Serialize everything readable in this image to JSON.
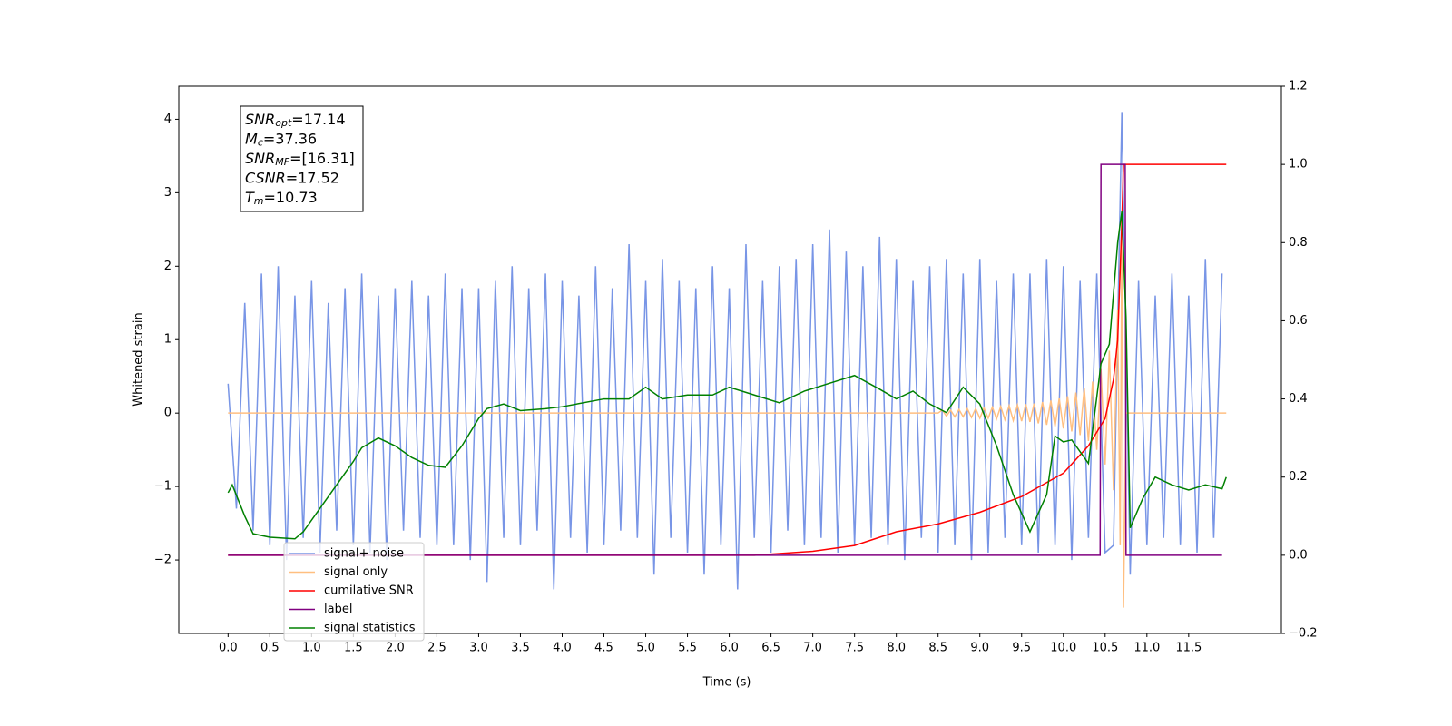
{
  "chart_data": {
    "type": "line",
    "xlabel": "Time (s)",
    "ylabel": "Whitened strain",
    "xlim": [
      -0.59,
      12.61
    ],
    "ylim": [
      -3.0,
      4.45
    ],
    "y2lim": [
      -0.2,
      1.2
    ],
    "xticks": [
      {
        "value": 0,
        "label": "0.0"
      },
      0.5,
      {
        "value": 1,
        "label": "1.0"
      },
      1.5,
      {
        "value": 2,
        "label": "2.0"
      },
      2.5,
      {
        "value": 3,
        "label": "3.0"
      },
      3.5,
      {
        "value": 4,
        "label": "4.0"
      },
      4.5,
      {
        "value": 5,
        "label": "5.0"
      },
      5.5,
      {
        "value": 6,
        "label": "6.0"
      },
      6.5,
      {
        "value": 7,
        "label": "7.0"
      },
      7.5,
      {
        "value": 8,
        "label": "8.0"
      },
      8.5,
      {
        "value": 9,
        "label": "9.0"
      },
      9.5,
      {
        "value": 10,
        "label": "10.0"
      },
      10.5,
      {
        "value": 11,
        "label": "11.0"
      },
      11.5
    ],
    "yticks": [
      {
        "value": -2,
        "label": "−2"
      },
      {
        "value": -1,
        "label": "−1"
      },
      0,
      1,
      2,
      3,
      4
    ],
    "y2ticks": [
      {
        "value": -0.2,
        "label": "−0.2"
      },
      {
        "value": 0,
        "label": "0.0"
      },
      0.2,
      0.4,
      0.6,
      0.8,
      {
        "value": 1,
        "label": "1.0"
      },
      1.2
    ],
    "stats_box": [
      {
        "symbol": "SNR",
        "subscript": "opt",
        "text": "=17.14"
      },
      {
        "symbol": "M",
        "subscript": "c",
        "text": "=37.36"
      },
      {
        "symbol": "SNR",
        "subscript": "MF",
        "text": "=[16.31]"
      },
      {
        "symbol": "CSNR",
        "subscript": null,
        "text": "=17.52"
      },
      {
        "symbol": "T",
        "subscript": "m",
        "text": "=10.73"
      }
    ],
    "series": [
      {
        "name": "signal+ noise",
        "color": "#7895e6",
        "axis": "y",
        "x": [
          0.0,
          0.1,
          0.2,
          0.3,
          0.4,
          0.5,
          0.6,
          0.7,
          0.8,
          0.9,
          1.0,
          1.1,
          1.2,
          1.3,
          1.4,
          1.5,
          1.6,
          1.7,
          1.8,
          1.9,
          2.0,
          2.1,
          2.2,
          2.3,
          2.4,
          2.5,
          2.6,
          2.7,
          2.8,
          2.9,
          3.0,
          3.1,
          3.2,
          3.3,
          3.4,
          3.5,
          3.6,
          3.7,
          3.8,
          3.9,
          4.0,
          4.1,
          4.2,
          4.3,
          4.4,
          4.5,
          4.6,
          4.7,
          4.8,
          4.9,
          5.0,
          5.1,
          5.2,
          5.3,
          5.4,
          5.5,
          5.6,
          5.7,
          5.8,
          5.9,
          6.0,
          6.1,
          6.2,
          6.3,
          6.4,
          6.5,
          6.6,
          6.7,
          6.8,
          6.9,
          7.0,
          7.1,
          7.2,
          7.3,
          7.4,
          7.5,
          7.6,
          7.7,
          7.8,
          7.9,
          8.0,
          8.1,
          8.2,
          8.3,
          8.4,
          8.5,
          8.6,
          8.7,
          8.8,
          8.9,
          9.0,
          9.1,
          9.2,
          9.3,
          9.4,
          9.5,
          9.6,
          9.7,
          9.8,
          9.9,
          10.0,
          10.1,
          10.2,
          10.3,
          10.4,
          10.5,
          10.6,
          10.7,
          10.8,
          10.9,
          11.0,
          11.1,
          11.2,
          11.3,
          11.4,
          11.5,
          11.6,
          11.7,
          11.8,
          11.9
        ],
        "values": [
          0.4,
          -1.3,
          1.5,
          -1.6,
          1.9,
          -1.8,
          2.0,
          -2.0,
          1.6,
          -1.7,
          1.8,
          -1.9,
          1.5,
          -1.6,
          1.7,
          -1.8,
          1.9,
          -1.9,
          1.6,
          -2.0,
          1.7,
          -1.6,
          1.8,
          -1.7,
          1.6,
          -1.8,
          1.9,
          -1.8,
          1.7,
          -2.0,
          1.7,
          -2.3,
          1.8,
          -1.7,
          2.0,
          -1.8,
          1.7,
          -1.6,
          1.9,
          -2.4,
          1.8,
          -1.7,
          1.6,
          -1.9,
          2.0,
          -1.8,
          1.7,
          -1.6,
          2.3,
          -1.7,
          1.8,
          -2.2,
          2.1,
          -1.7,
          1.8,
          -1.9,
          1.7,
          -2.2,
          2.0,
          -1.8,
          1.7,
          -2.4,
          2.3,
          -1.7,
          1.8,
          -1.9,
          2.0,
          -1.6,
          2.1,
          -1.8,
          2.3,
          -1.7,
          2.5,
          -1.9,
          2.2,
          -1.8,
          2.0,
          -1.7,
          2.4,
          -1.8,
          2.1,
          -2.0,
          1.8,
          -1.7,
          2.0,
          -1.9,
          2.1,
          -1.8,
          1.9,
          -2.0,
          2.1,
          -1.9,
          1.8,
          -1.7,
          1.9,
          -1.8,
          1.9,
          -1.9,
          2.1,
          -1.8,
          2.0,
          -2.0,
          1.8,
          -1.7,
          1.9,
          -1.9,
          -1.8,
          4.1,
          -2.2,
          1.8,
          -1.8,
          1.6,
          -1.7,
          1.9,
          -1.8,
          1.6,
          -1.9,
          2.1,
          -1.7,
          1.9
        ]
      },
      {
        "name": "signal only",
        "color": "#ffbf80",
        "axis": "y",
        "x": [
          0.0,
          8.5,
          8.55,
          8.6,
          8.65,
          8.7,
          8.75,
          8.8,
          8.85,
          8.9,
          8.95,
          9.0,
          9.05,
          9.1,
          9.15,
          9.2,
          9.25,
          9.3,
          9.35,
          9.4,
          9.45,
          9.5,
          9.55,
          9.6,
          9.65,
          9.7,
          9.75,
          9.8,
          9.85,
          9.9,
          9.95,
          10.0,
          10.05,
          10.1,
          10.15,
          10.2,
          10.25,
          10.3,
          10.35,
          10.4,
          10.45,
          10.5,
          10.55,
          10.6,
          10.65,
          10.68,
          10.7,
          10.72,
          10.75,
          11.95
        ],
        "values": [
          0,
          0,
          0.04,
          -0.04,
          0.04,
          -0.05,
          0.05,
          -0.05,
          0.06,
          -0.06,
          0.06,
          -0.07,
          0.07,
          -0.07,
          0.08,
          -0.08,
          0.09,
          -0.09,
          0.1,
          -0.1,
          0.11,
          -0.11,
          0.12,
          -0.12,
          0.13,
          -0.14,
          0.15,
          -0.16,
          0.17,
          -0.18,
          0.2,
          -0.21,
          0.23,
          -0.25,
          0.28,
          -0.3,
          0.34,
          -0.38,
          0.43,
          -0.5,
          0.6,
          -0.7,
          0.85,
          -1.05,
          1.4,
          -1.8,
          2.6,
          -2.65,
          0,
          0
        ]
      },
      {
        "name": "cumilative SNR",
        "color": "#ff0000",
        "axis": "y2",
        "x": [
          0.0,
          6.3,
          7.0,
          7.5,
          8.0,
          8.5,
          9.0,
          9.5,
          10.0,
          10.3,
          10.5,
          10.6,
          10.65,
          10.7,
          10.72,
          11.95
        ],
        "values": [
          0,
          0,
          0.01,
          0.025,
          0.06,
          0.08,
          0.11,
          0.15,
          0.21,
          0.28,
          0.35,
          0.45,
          0.55,
          0.85,
          1.0,
          1.0
        ]
      },
      {
        "name": "label",
        "color": "#800080",
        "axis": "y2",
        "x": [
          0.0,
          10.44,
          10.45,
          10.74,
          10.75,
          11.9
        ],
        "values": [
          0,
          0,
          1,
          1,
          0,
          0
        ]
      },
      {
        "name": "signal statistics",
        "color": "#008000",
        "axis": "y2",
        "x": [
          0.0,
          0.05,
          0.2,
          0.3,
          0.5,
          0.8,
          0.9,
          1.1,
          1.3,
          1.5,
          1.6,
          1.8,
          2.0,
          2.2,
          2.4,
          2.6,
          2.8,
          3.0,
          3.1,
          3.3,
          3.5,
          3.8,
          4.0,
          4.5,
          4.8,
          5.0,
          5.2,
          5.5,
          5.8,
          6.0,
          6.3,
          6.6,
          6.9,
          7.2,
          7.5,
          7.8,
          8.0,
          8.2,
          8.4,
          8.6,
          8.8,
          9.0,
          9.2,
          9.4,
          9.6,
          9.8,
          9.9,
          10.0,
          10.1,
          10.3,
          10.45,
          10.55,
          10.65,
          10.7,
          10.75,
          10.8,
          10.95,
          11.1,
          11.3,
          11.5,
          11.7,
          11.9,
          11.95
        ],
        "values": [
          0.16,
          0.18,
          0.1,
          0.055,
          0.046,
          0.042,
          0.06,
          0.12,
          0.18,
          0.24,
          0.275,
          0.3,
          0.28,
          0.25,
          0.23,
          0.225,
          0.28,
          0.35,
          0.375,
          0.387,
          0.37,
          0.375,
          0.38,
          0.4,
          0.4,
          0.43,
          0.4,
          0.41,
          0.41,
          0.43,
          0.41,
          0.39,
          0.42,
          0.44,
          0.46,
          0.425,
          0.4,
          0.42,
          0.387,
          0.365,
          0.43,
          0.387,
          0.28,
          0.155,
          0.06,
          0.155,
          0.305,
          0.29,
          0.295,
          0.235,
          0.49,
          0.54,
          0.8,
          0.88,
          0.61,
          0.07,
          0.145,
          0.2,
          0.18,
          0.167,
          0.18,
          0.17,
          0.2
        ]
      }
    ]
  }
}
